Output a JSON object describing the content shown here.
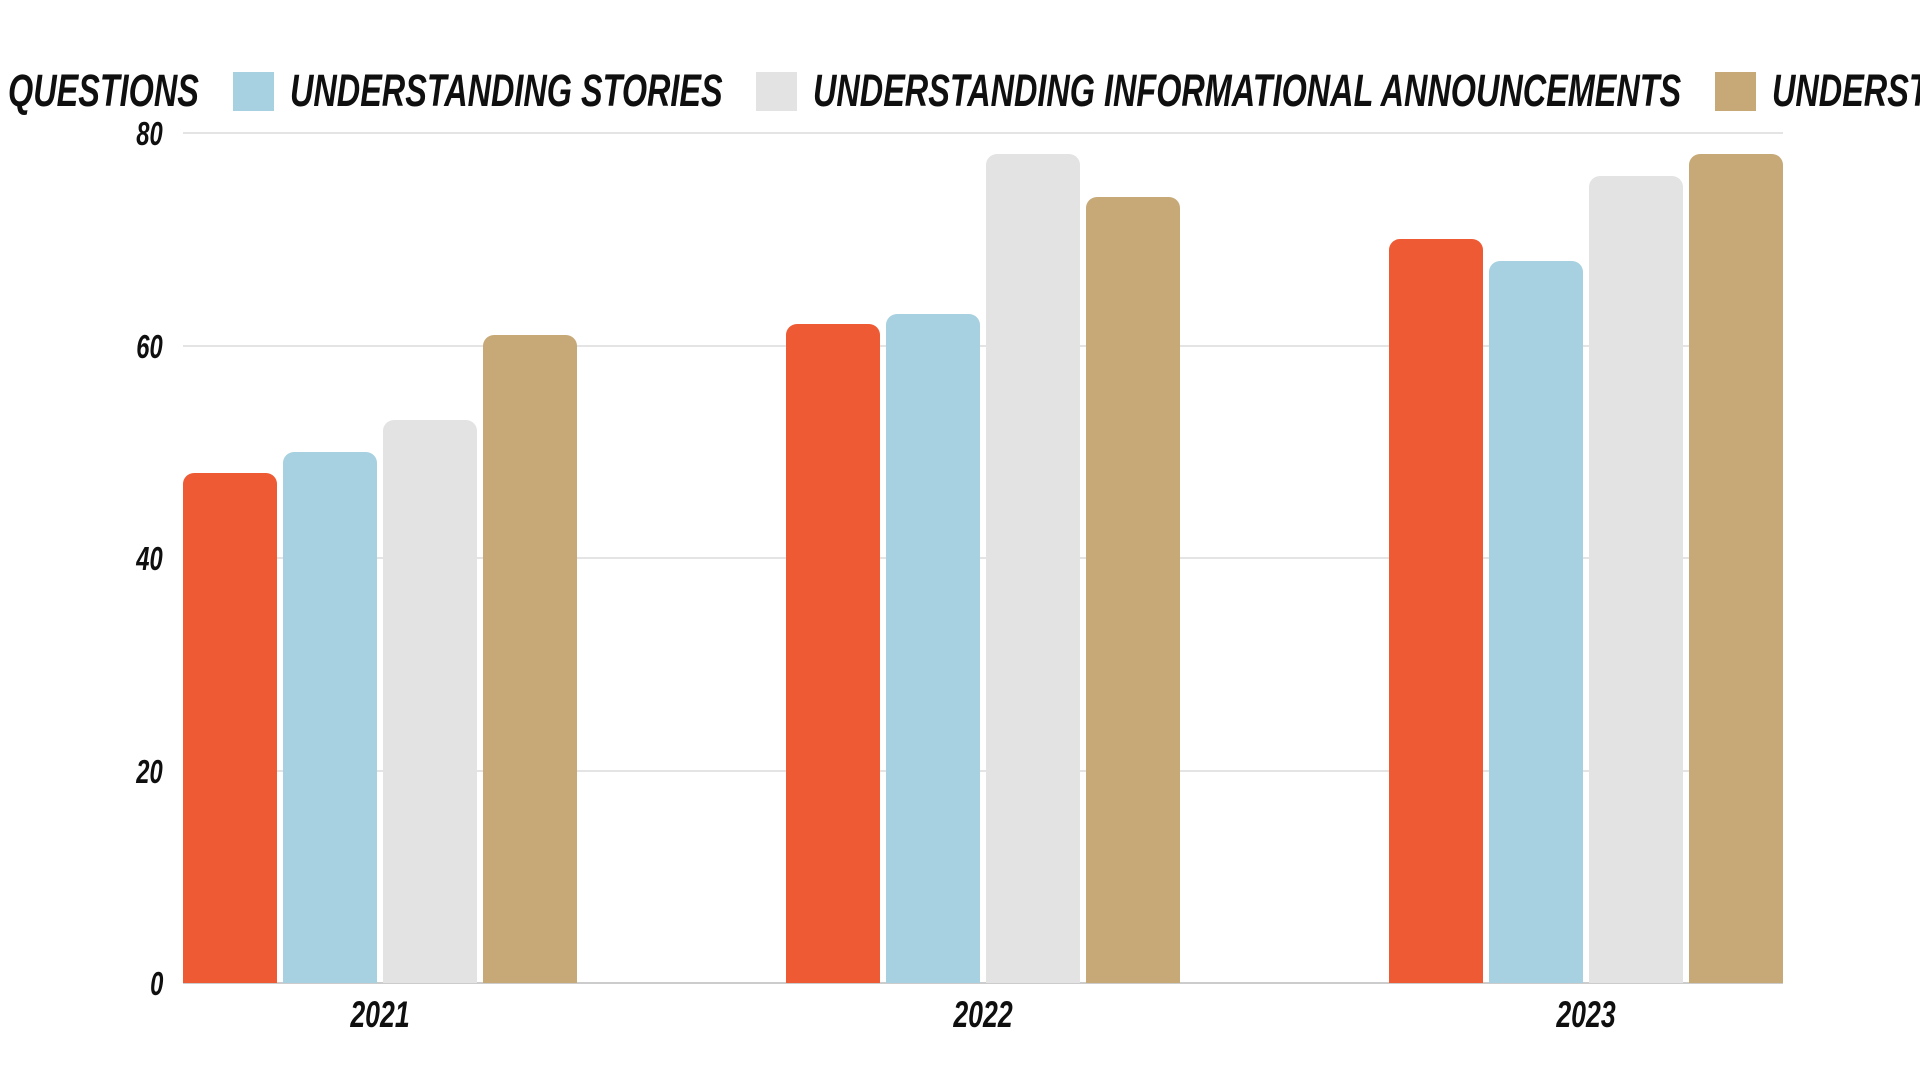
{
  "page": {
    "background": "#ffffff",
    "text_color": "#0f0f0f",
    "gridline_color": "#e4e4e4",
    "baseline_color": "#cccccc"
  },
  "chart_data": {
    "type": "bar",
    "title": "",
    "categories": [
      "2021",
      "2022",
      "2023"
    ],
    "series": [
      {
        "name": "UNDERSTANDING QUESTIONS",
        "color": "#EE5A33",
        "values": [
          48,
          62,
          70
        ]
      },
      {
        "name": "UNDERSTANDING STORIES",
        "color": "#A7D1E0",
        "values": [
          50,
          63,
          68
        ]
      },
      {
        "name": "UNDERSTANDING INFORMATIONAL ANNOUNCEMENTS",
        "color": "#E3E3E3",
        "values": [
          53,
          78,
          76
        ]
      },
      {
        "name": "UNDERSTANDING INSTRUCTIONS",
        "color": "#C7A977",
        "values": [
          61,
          74,
          78
        ]
      }
    ],
    "ylim": [
      0,
      80
    ],
    "yticks": [
      0,
      20,
      40,
      60,
      80
    ],
    "grid": true,
    "legend_position": "top",
    "xlabel": "",
    "ylabel": ""
  }
}
